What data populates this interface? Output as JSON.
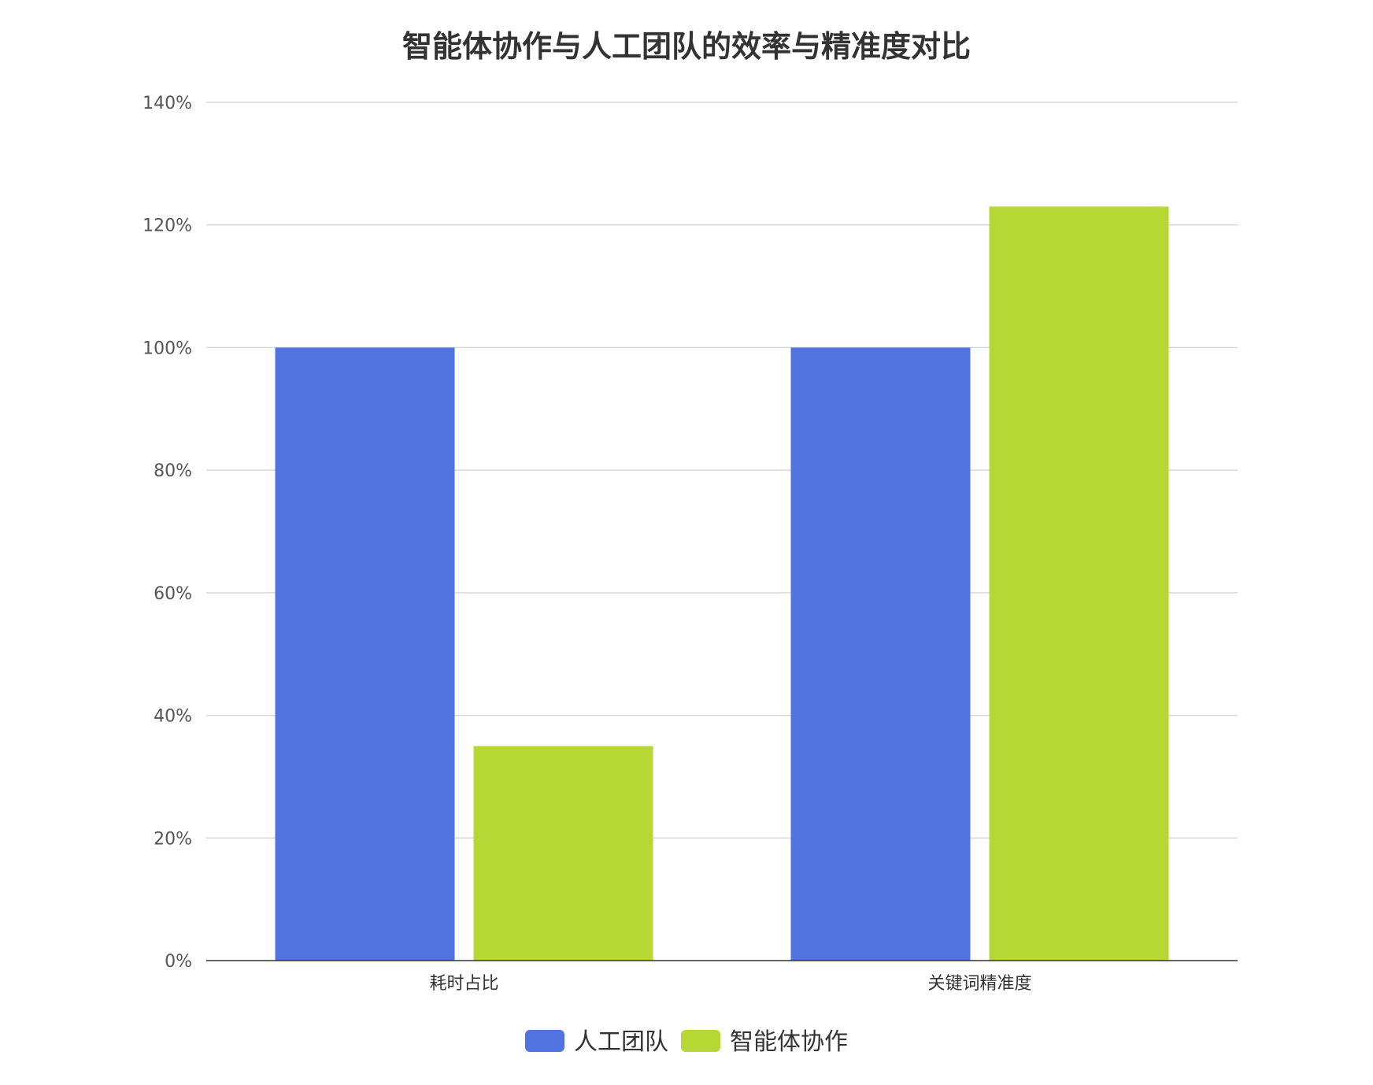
{
  "chart_data": {
    "type": "bar",
    "title": "智能体协作与人工团队的效率与精准度对比",
    "xlabel": "",
    "ylabel": "",
    "categories": [
      "耗时占比",
      "关键词精准度"
    ],
    "series": [
      {
        "name": "人工团队",
        "values": [
          100,
          100
        ],
        "color": "#5173df"
      },
      {
        "name": "智能体协作",
        "values": [
          35,
          123
        ],
        "color": "#b6d734"
      }
    ],
    "ylim": [
      0,
      140
    ],
    "yticks": [
      0,
      20,
      40,
      60,
      80,
      100,
      120,
      140
    ],
    "ytick_format": "{v}%",
    "grid": true,
    "legend": "bottom-center"
  }
}
